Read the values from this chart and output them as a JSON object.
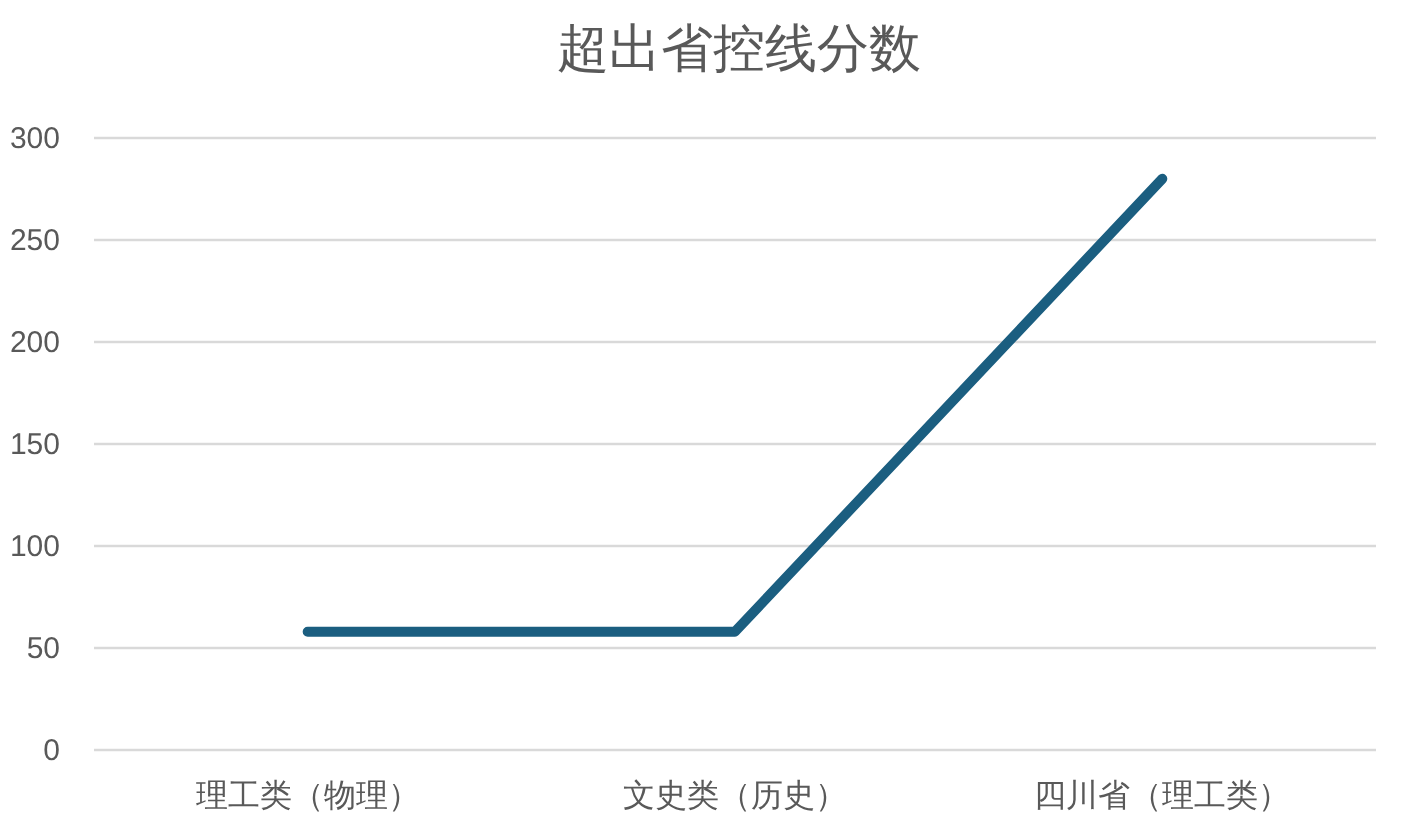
{
  "chart_data": {
    "type": "line",
    "title": "超出省控线分数",
    "categories": [
      "理工类（物理）",
      "文史类（历史）",
      "四川省（理工类）"
    ],
    "series": [
      {
        "color": "#1b5e80",
        "values": [
          58,
          58,
          280
        ]
      }
    ],
    "ylim": [
      0,
      300
    ],
    "yticks": [
      0,
      50,
      100,
      150,
      200,
      250,
      300
    ],
    "grid": "y",
    "marker": "none",
    "line_style": "solid"
  }
}
